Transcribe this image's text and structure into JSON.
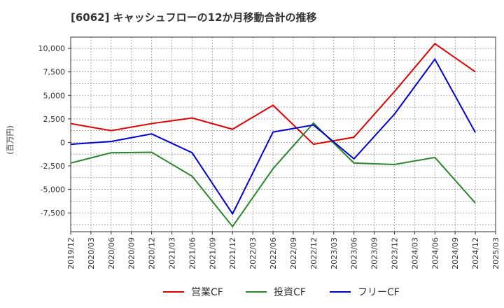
{
  "chart_data": {
    "type": "line",
    "title": "[6062]  キャッシュフローの12か月移動合計の推移",
    "ylabel": "(百万円)",
    "xlabel": "",
    "ylim": [
      -9500,
      11200
    ],
    "yticks": [
      10000,
      7500,
      5000,
      2500,
      0,
      -2500,
      -5000,
      -7500
    ],
    "ytick_labels": [
      "10,000",
      "7,500",
      "5,000",
      "2,500",
      "0",
      "-2,500",
      "-5,000",
      "-7,500"
    ],
    "x_tick_labels": [
      "2019/12",
      "2020/03",
      "2020/06",
      "2020/09",
      "2020/12",
      "2021/03",
      "2021/06",
      "2021/09",
      "2021/12",
      "2022/03",
      "2022/06",
      "2022/09",
      "2022/12",
      "2023/03",
      "2023/06",
      "2023/09",
      "2023/12",
      "2024/03",
      "2024/06",
      "2024/09",
      "2024/12",
      "2025/03"
    ],
    "x_data_index": [
      0,
      2,
      4,
      6,
      8,
      10,
      12,
      14,
      16,
      18,
      20
    ],
    "grid": true,
    "legend_position": "bottom-center",
    "series": [
      {
        "name": "営業CF",
        "color": "#dd0000",
        "values": [
          2000,
          1250,
          2000,
          2600,
          1400,
          3950,
          -200,
          550,
          5400,
          10500,
          7500
        ]
      },
      {
        "name": "投資CF",
        "color": "#2a862a",
        "values": [
          -2200,
          -1100,
          -1050,
          -3600,
          -8950,
          -2800,
          2050,
          -2200,
          -2350,
          -1600,
          -6450
        ]
      },
      {
        "name": "フリーCF",
        "color": "#0000cc",
        "values": [
          -200,
          100,
          900,
          -1100,
          -7600,
          1100,
          1850,
          -1750,
          3000,
          8850,
          1050
        ]
      }
    ]
  }
}
